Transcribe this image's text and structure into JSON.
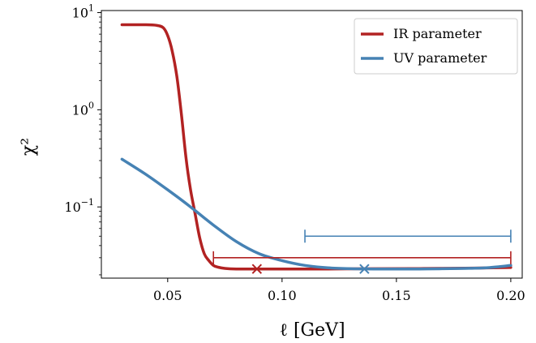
{
  "chart_data": {
    "type": "line",
    "xlabel": "ℓ [GeV]",
    "ylabel": "χ²",
    "yscale": "log",
    "xlim": [
      0.021,
      0.205
    ],
    "ylim": [
      0.0185,
      10.5
    ],
    "xticks": [
      {
        "value": 0.05,
        "label": "0.05"
      },
      {
        "value": 0.1,
        "label": "0.10"
      },
      {
        "value": 0.15,
        "label": "0.15"
      },
      {
        "value": 0.2,
        "label": "0.20"
      }
    ],
    "yticks": [
      {
        "value": 10,
        "base": "10",
        "exp": "1"
      },
      {
        "value": 1,
        "base": "10",
        "exp": "0"
      },
      {
        "value": 0.1,
        "base": "10",
        "exp": "−1"
      }
    ],
    "legend": {
      "position": "top-right"
    },
    "series": [
      {
        "name": "IR parameter",
        "color": "#b22222",
        "x": [
          0.03,
          0.04,
          0.045,
          0.048,
          0.05,
          0.052,
          0.054,
          0.056,
          0.058,
          0.06,
          0.062,
          0.064,
          0.066,
          0.068,
          0.07,
          0.072,
          0.075,
          0.08,
          0.09,
          0.1,
          0.12,
          0.14,
          0.16,
          0.18,
          0.2
        ],
        "y": [
          7.5,
          7.5,
          7.4,
          7.0,
          5.8,
          4.0,
          2.2,
          0.9,
          0.32,
          0.15,
          0.085,
          0.048,
          0.033,
          0.028,
          0.025,
          0.024,
          0.0233,
          0.023,
          0.023,
          0.023,
          0.023,
          0.0231,
          0.0232,
          0.0234,
          0.0238
        ],
        "minimum": {
          "x": 0.089,
          "y": 0.023
        },
        "interval": {
          "x": [
            0.07,
            0.2
          ],
          "y": 0.03
        }
      },
      {
        "name": "UV parameter",
        "color": "#4682b4",
        "x": [
          0.03,
          0.04,
          0.05,
          0.06,
          0.07,
          0.08,
          0.09,
          0.1,
          0.11,
          0.12,
          0.13,
          0.14,
          0.15,
          0.16,
          0.17,
          0.18,
          0.19,
          0.2
        ],
        "y": [
          0.31,
          0.22,
          0.15,
          0.1,
          0.065,
          0.044,
          0.033,
          0.028,
          0.025,
          0.0236,
          0.0231,
          0.023,
          0.023,
          0.023,
          0.0231,
          0.0233,
          0.0237,
          0.025
        ],
        "minimum": {
          "x": 0.136,
          "y": 0.023
        },
        "interval": {
          "x": [
            0.11,
            0.2
          ],
          "y": 0.05
        }
      }
    ]
  }
}
